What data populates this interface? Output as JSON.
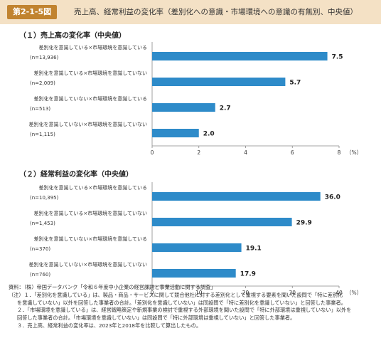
{
  "header": {
    "figure_no": "第2-1-5図",
    "title": "売上高、経常利益の変化率（差別化への意識・市場環境への意識の有無別、中央値）"
  },
  "chart_data": [
    {
      "type": "bar",
      "orientation": "horizontal",
      "title": "（１）売上高の変化率（中央値）",
      "categories": [
        "差別化を意識している×市場環境を意識している",
        "差別化を意識している×市場環境を意識していない",
        "差別化を意識していない×市場環境を意識している",
        "差別化を意識していない×市場環境を意識していない"
      ],
      "counts": [
        "(n=13,936)",
        "(n=2,009)",
        "(n=513)",
        "(n=1,115)"
      ],
      "values": [
        7.5,
        5.7,
        2.7,
        2.0
      ],
      "value_labels": [
        "7.5",
        "5.7",
        "2.7",
        "2.0"
      ],
      "xlim": [
        0,
        8
      ],
      "ticks": [
        "0",
        "2",
        "4",
        "6",
        "8"
      ],
      "unit": "（%）",
      "color": "#2e8bc9"
    },
    {
      "type": "bar",
      "orientation": "horizontal",
      "title": "（２）経常利益の変化率（中央値）",
      "categories": [
        "差別化を意識している×市場環境を意識している",
        "差別化を意識している×市場環境を意識していない",
        "差別化を意識していない×市場環境を意識している",
        "差別化を意識していない×市場環境を意識していない"
      ],
      "counts": [
        "(n=10,395)",
        "(n=1,453)",
        "(n=370)",
        "(n=760)"
      ],
      "values": [
        36.0,
        29.9,
        19.1,
        17.9
      ],
      "value_labels": [
        "36.0",
        "29.9",
        "19.1",
        "17.9"
      ],
      "xlim": [
        0,
        40
      ],
      "ticks": [
        "0",
        "10",
        "20",
        "30",
        "40"
      ],
      "unit": "（%）",
      "color": "#2e8bc9"
    }
  ],
  "notes": [
    "資料：（株）帝国データバンク「令和６年度中小企業の経営課題と事業活動に関する調査」",
    "（注）１．「差別化を意識している」は、製品・商品・サービスに関して競合他社に対する差別化として重視する要素を聞いた設問で「特に差別化",
    "を意識していない」以外を回答した事業者の合計。「差別化を意識していない」は同設問で「特に差別化を意識していない」と回答した事業者。",
    "２．「市場環境を意識している」は、経営戦略策定や新規事業の検討で重視する外部環境を聞いた設問で「特に外部環境は重視していない」以外を",
    "回答した事業者の合計。「市場環境を意識していない」は同設問で「特に外部環境は重視していない」と回答した事業者。",
    "３．売上高、経常利益の変化率は、2023年と2018年を比較して算出したもの。"
  ]
}
